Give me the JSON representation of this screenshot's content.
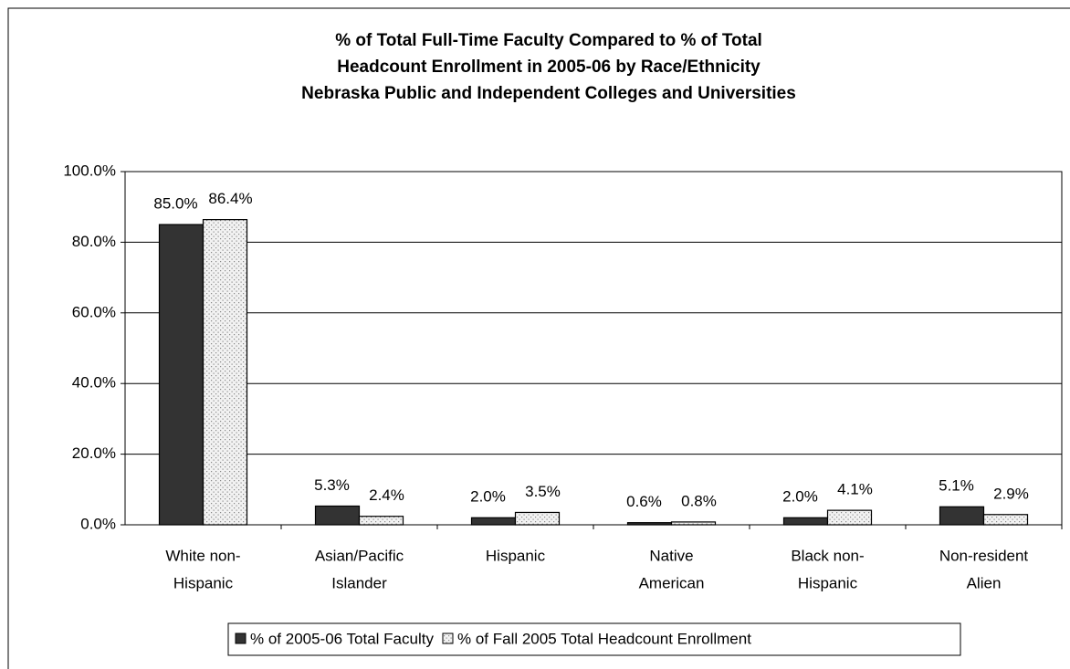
{
  "chart_data": {
    "type": "bar",
    "title": [
      "% of Total Full-Time Faculty Compared to % of Total",
      "Headcount Enrollment in 2005-06 by Race/Ethnicity",
      "Nebraska Public and Independent Colleges and Universities"
    ],
    "categories": [
      [
        "White non-",
        "Hispanic"
      ],
      [
        "Asian/Pacific",
        "Islander"
      ],
      [
        "Hispanic"
      ],
      [
        "Native",
        "American"
      ],
      [
        "Black non-",
        "Hispanic"
      ],
      [
        "Non-resident",
        "Alien"
      ]
    ],
    "series": [
      {
        "name": "% of  2005-06 Total Faculty",
        "color": "#333333",
        "values": [
          85.0,
          5.3,
          2.0,
          0.6,
          2.0,
          5.1
        ],
        "value_labels": [
          "85.0%",
          "5.3%",
          "2.0%",
          "0.6%",
          "2.0%",
          "5.1%"
        ]
      },
      {
        "name": "% of Fall 2005 Total Headcount Enrollment",
        "color": "#e8e8e8",
        "values": [
          86.4,
          2.4,
          3.5,
          0.8,
          4.1,
          2.9
        ],
        "value_labels": [
          "86.4%",
          "2.4%",
          "3.5%",
          "0.8%",
          "4.1%",
          "2.9%"
        ]
      }
    ],
    "ylim": [
      0,
      100
    ],
    "yticks": [
      {
        "value": 0,
        "label": "0.0%"
      },
      {
        "value": 20,
        "label": "20.0%"
      },
      {
        "value": 40,
        "label": "40.0%"
      },
      {
        "value": 60,
        "label": "60.0%"
      },
      {
        "value": 80,
        "label": "80.0%"
      },
      {
        "value": 100,
        "label": "100.0%"
      }
    ],
    "grid": true,
    "legend": "bottom"
  }
}
